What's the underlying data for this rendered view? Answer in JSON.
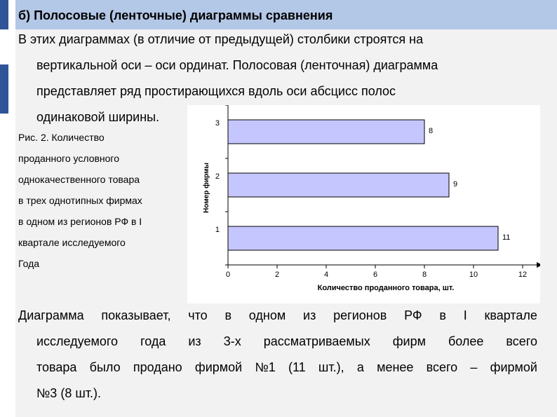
{
  "title": "б) Полосовые (ленточные) диаграммы сравнения",
  "intro_lines": [
    "В этих диаграммах (в отличие от предыдущей) столбики строятся на",
    "вертикальной оси – оси ординат. Полосовая (ленточная) диаграмма",
    "представляет ряд простирающихся вдоль оси абсцисс полос",
    "одинаковой ширины."
  ],
  "caption_lines": [
    "Рис. 2. Количество",
    "проданного условного",
    "однокачественного товара",
    "в трех однотипных фирмах",
    "в одном из регионов РФ в I",
    " квартале исследуемого",
    "Года"
  ],
  "chart_data": {
    "type": "bar",
    "orientation": "horizontal",
    "categories": [
      "3",
      "2",
      "1"
    ],
    "values": [
      8,
      9,
      11
    ],
    "value_labels": [
      "8",
      "9",
      "11"
    ],
    "xlabel": "Количество проданного товара, шт.",
    "ylabel": "Номер фирмы",
    "xlim": [
      0,
      12
    ],
    "xticks": [
      "0",
      "2",
      "4",
      "6",
      "8",
      "10",
      "12"
    ],
    "grid": false,
    "bar_fill": "#c6c6ff",
    "bar_stroke": "#000000"
  },
  "conclusion_lines": [
    "Диаграмма показывает, что в одном из регионов РФ в I квартале",
    "исследуемого года из 3-х рассматриваемых фирм более всего",
    "товара было продано фирмой №1 (11 шт.), а менее всего – фирмой",
    "№3 (8 шт.)."
  ],
  "colors": {
    "title_strip": "#b3c7e6",
    "rail_mark": "#2f5597",
    "background": "#f2f2f2",
    "chart_panel": "#ffffff"
  }
}
